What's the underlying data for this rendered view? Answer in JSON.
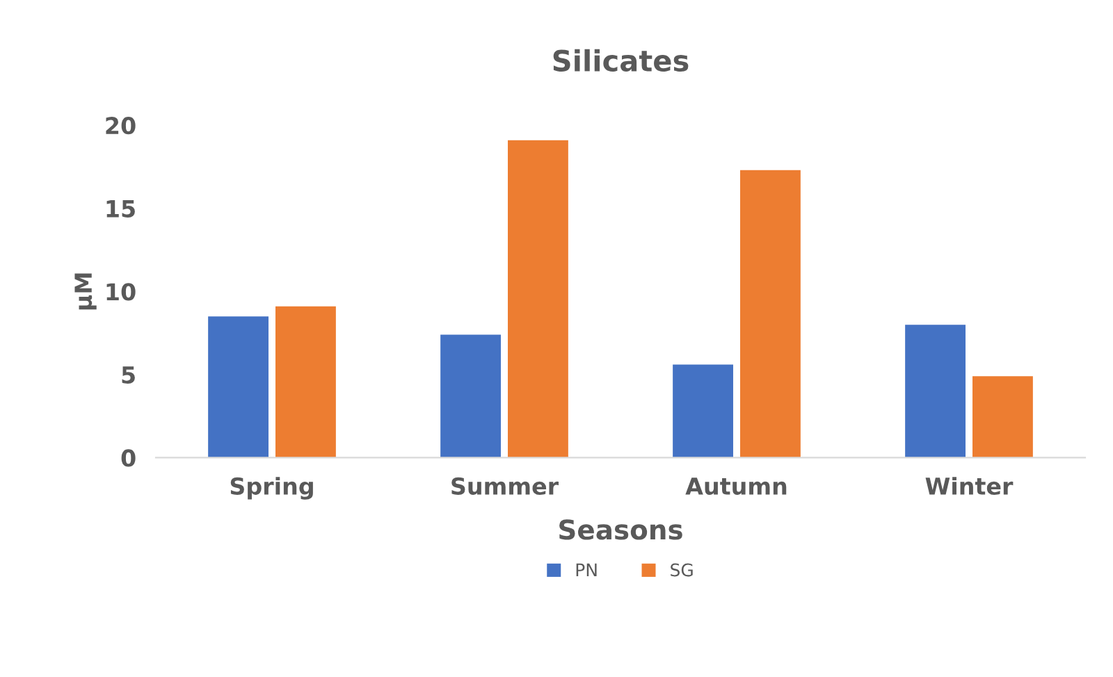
{
  "chart_data": {
    "type": "bar",
    "title": "Silicates",
    "xlabel": "Seasons",
    "ylabel": "µM",
    "categories": [
      "Spring",
      "Summer",
      "Autumn",
      "Winter"
    ],
    "series": [
      {
        "name": "PN",
        "color": "#4472c4",
        "values": [
          8.5,
          7.4,
          5.6,
          8.0
        ]
      },
      {
        "name": "SG",
        "color": "#ed7d31",
        "values": [
          9.1,
          19.1,
          17.3,
          4.9
        ]
      }
    ],
    "ylim": [
      0,
      20
    ],
    "yticks": [
      0,
      5,
      10,
      15,
      20
    ],
    "grid": false,
    "legend": "bottom"
  }
}
